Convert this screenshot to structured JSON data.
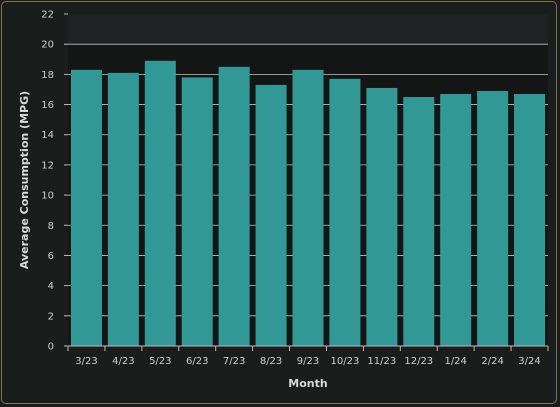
{
  "chart_data": {
    "type": "bar",
    "categories": [
      "3/23",
      "4/23",
      "5/23",
      "6/23",
      "7/23",
      "8/23",
      "9/23",
      "10/23",
      "11/23",
      "12/23",
      "1/24",
      "2/24",
      "3/24"
    ],
    "values": [
      18.3,
      18.1,
      18.9,
      17.8,
      18.5,
      17.3,
      18.3,
      17.7,
      17.1,
      16.5,
      16.7,
      16.9,
      16.7
    ],
    "title": "",
    "xlabel": "Month",
    "ylabel": "Average Consumption (MPG)",
    "ylim": [
      0,
      22
    ],
    "yticks": [
      0,
      2,
      4,
      6,
      8,
      10,
      12,
      14,
      16,
      18,
      20,
      22
    ],
    "grid": true,
    "legend": "none",
    "colors": {
      "bar": "#329896",
      "plot_background": "#141616",
      "band": "#1f2223",
      "grid": "#e4e4e4",
      "border": "#7d7650"
    }
  }
}
